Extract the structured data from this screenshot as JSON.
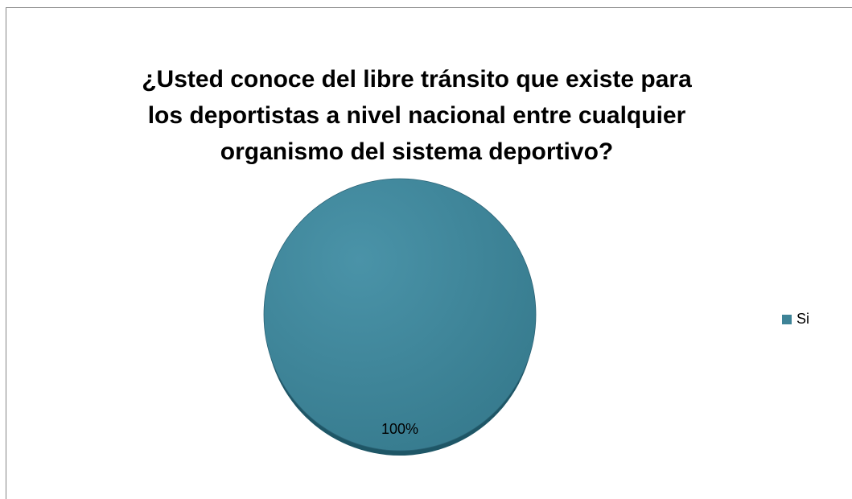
{
  "chart_data": {
    "type": "pie",
    "title": "¿Usted conoce del libre tránsito que existe para los deportistas a nivel nacional entre cualquier organismo del sistema deportivo?",
    "categories": [
      "Si"
    ],
    "values": [
      100
    ],
    "data_labels": [
      "100%"
    ],
    "legend_position": "right",
    "colors": {
      "Si": "#3E8397",
      "slice_edge": "#2B6376",
      "shadow": "#1E5666"
    }
  }
}
